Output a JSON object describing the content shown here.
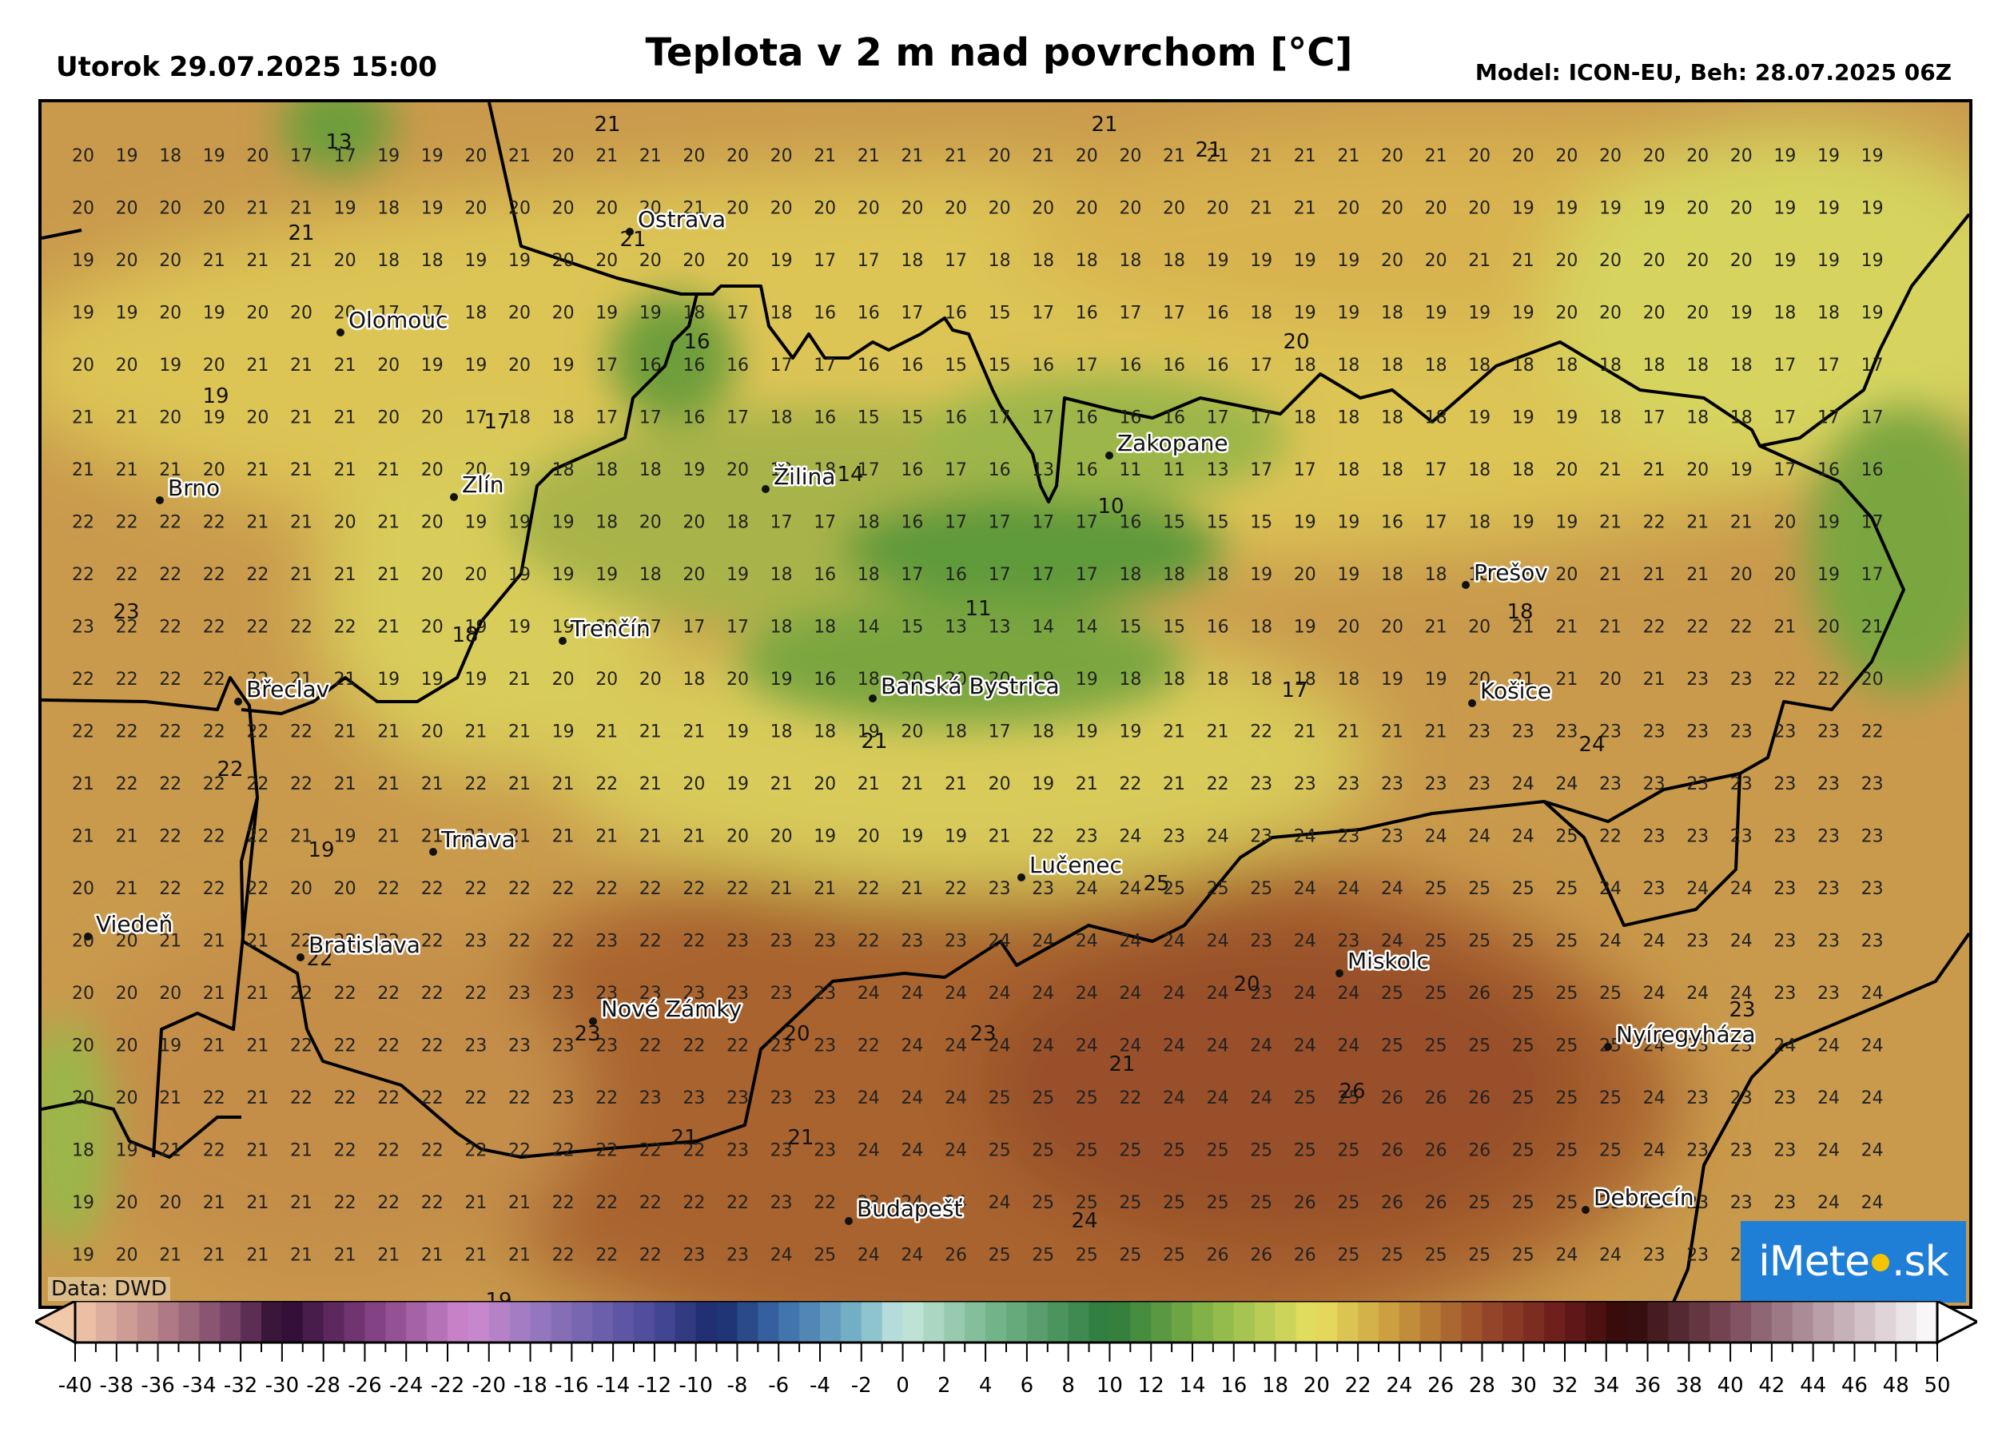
{
  "header": {
    "datetime": "Utorok 29.07.2025 15:00",
    "title": "Teplota v 2 m nad povrchom [°C]",
    "model_info": "Model: ICON-EU, Beh: 28.07.2025 06Z"
  },
  "footer": {
    "data_source": "Data: DWD",
    "logo_text_left": "iMete",
    "logo_text_right": ".sk"
  },
  "cities": [
    {
      "name": "Ostrava"
    },
    {
      "name": "Olomouc"
    },
    {
      "name": "Brno"
    },
    {
      "name": "Zlín"
    },
    {
      "name": "Žilina"
    },
    {
      "name": "Zakopane"
    },
    {
      "name": "Trenčín"
    },
    {
      "name": "Břeclav"
    },
    {
      "name": "Banská Bystrica"
    },
    {
      "name": "Prešov"
    },
    {
      "name": "Košice"
    },
    {
      "name": "Trnava"
    },
    {
      "name": "Viedeň"
    },
    {
      "name": "Bratislava"
    },
    {
      "name": "Lučenec"
    },
    {
      "name": "Miskolc"
    },
    {
      "name": "Nové Zámky"
    },
    {
      "name": "Nyíregyháza"
    },
    {
      "name": "Budapešť"
    },
    {
      "name": "Debrecín"
    }
  ],
  "extremes": [
    {
      "value": "13"
    },
    {
      "value": "21"
    },
    {
      "value": "21"
    },
    {
      "value": "21"
    },
    {
      "value": "21"
    },
    {
      "value": "21"
    },
    {
      "value": "16"
    },
    {
      "value": "20"
    },
    {
      "value": "19"
    },
    {
      "value": "17"
    },
    {
      "value": "14"
    },
    {
      "value": "10"
    },
    {
      "value": "23"
    },
    {
      "value": "18"
    },
    {
      "value": "11"
    },
    {
      "value": "18"
    },
    {
      "value": "17"
    },
    {
      "value": "21"
    },
    {
      "value": "24"
    },
    {
      "value": "22"
    },
    {
      "value": "19"
    },
    {
      "value": "25"
    },
    {
      "value": "22"
    },
    {
      "value": "20"
    },
    {
      "value": "23"
    },
    {
      "value": "23"
    },
    {
      "value": "20"
    },
    {
      "value": "23"
    },
    {
      "value": "21"
    },
    {
      "value": "26"
    },
    {
      "value": "21"
    },
    {
      "value": "21"
    },
    {
      "value": "24"
    },
    {
      "value": "19"
    }
  ],
  "grid_values": [
    [
      20,
      19,
      18,
      19,
      20,
      17,
      17,
      19,
      19,
      20,
      21,
      20,
      21,
      21,
      20,
      20,
      20,
      21,
      21,
      21,
      21,
      20,
      21,
      20,
      20,
      21,
      21,
      21,
      21,
      21,
      20,
      21,
      20,
      20,
      20,
      20,
      20,
      20,
      20,
      19,
      19,
      19
    ],
    [
      20,
      20,
      20,
      20,
      21,
      21,
      19,
      18,
      19,
      20,
      20,
      20,
      20,
      20,
      21,
      20,
      20,
      20,
      20,
      20,
      20,
      20,
      20,
      20,
      20,
      20,
      20,
      21,
      21,
      20,
      20,
      20,
      20,
      19,
      19,
      19,
      19,
      20,
      20,
      19,
      19,
      19
    ],
    [
      19,
      20,
      20,
      21,
      21,
      21,
      20,
      18,
      18,
      19,
      19,
      20,
      20,
      20,
      20,
      20,
      19,
      17,
      17,
      18,
      17,
      18,
      18,
      18,
      18,
      18,
      19,
      19,
      19,
      19,
      20,
      20,
      21,
      21,
      20,
      20,
      20,
      20,
      20,
      19,
      19,
      19
    ],
    [
      19,
      19,
      20,
      19,
      20,
      20,
      20,
      17,
      17,
      18,
      20,
      20,
      19,
      19,
      18,
      17,
      18,
      16,
      16,
      17,
      16,
      15,
      17,
      16,
      17,
      17,
      16,
      18,
      19,
      19,
      18,
      19,
      19,
      19,
      20,
      20,
      20,
      20,
      19,
      18,
      18,
      19
    ],
    [
      20,
      20,
      19,
      20,
      21,
      21,
      21,
      20,
      19,
      19,
      20,
      19,
      17,
      16,
      16,
      16,
      17,
      17,
      16,
      16,
      15,
      15,
      16,
      17,
      16,
      16,
      16,
      17,
      18,
      18,
      18,
      18,
      18,
      18,
      18,
      18,
      18,
      18,
      18,
      17,
      17,
      17
    ],
    [
      21,
      21,
      20,
      19,
      20,
      21,
      21,
      20,
      20,
      17,
      18,
      18,
      17,
      17,
      16,
      17,
      18,
      16,
      15,
      15,
      16,
      17,
      17,
      16,
      16,
      16,
      17,
      17,
      18,
      18,
      18,
      18,
      19,
      19,
      19,
      18,
      17,
      18,
      18,
      17,
      17,
      17
    ],
    [
      21,
      21,
      21,
      20,
      21,
      21,
      21,
      21,
      20,
      20,
      19,
      18,
      18,
      18,
      19,
      20,
      19,
      18,
      17,
      16,
      17,
      16,
      13,
      16,
      11,
      11,
      13,
      17,
      17,
      18,
      18,
      17,
      18,
      18,
      20,
      21,
      21,
      20,
      19,
      17,
      16,
      16
    ],
    [
      22,
      22,
      22,
      22,
      21,
      21,
      20,
      21,
      20,
      19,
      19,
      19,
      18,
      20,
      20,
      18,
      17,
      17,
      18,
      16,
      17,
      17,
      17,
      17,
      16,
      15,
      15,
      15,
      19,
      19,
      16,
      17,
      18,
      19,
      19,
      21,
      22,
      21,
      21,
      20,
      19,
      17
    ],
    [
      22,
      22,
      22,
      22,
      22,
      21,
      21,
      21,
      20,
      20,
      19,
      19,
      19,
      18,
      20,
      19,
      18,
      16,
      18,
      17,
      16,
      17,
      17,
      17,
      18,
      18,
      18,
      19,
      20,
      19,
      18,
      18,
      18,
      18,
      20,
      21,
      21,
      21,
      20,
      20,
      19,
      17
    ],
    [
      23,
      22,
      22,
      22,
      22,
      22,
      22,
      21,
      20,
      19,
      19,
      19,
      20,
      17,
      17,
      17,
      18,
      18,
      14,
      15,
      13,
      13,
      14,
      14,
      15,
      15,
      16,
      18,
      19,
      20,
      20,
      21,
      20,
      21,
      21,
      21,
      22,
      22,
      22,
      21,
      20,
      21
    ],
    [
      22,
      22,
      22,
      22,
      22,
      21,
      21,
      19,
      19,
      19,
      21,
      20,
      20,
      20,
      18,
      20,
      19,
      16,
      18,
      20,
      20,
      20,
      19,
      19,
      18,
      18,
      18,
      18,
      18,
      18,
      19,
      19,
      20,
      21,
      21,
      20,
      21,
      23,
      23,
      22,
      22,
      20
    ],
    [
      22,
      22,
      22,
      22,
      22,
      22,
      21,
      21,
      20,
      21,
      21,
      19,
      21,
      21,
      21,
      19,
      18,
      18,
      19,
      20,
      18,
      17,
      18,
      19,
      19,
      21,
      21,
      22,
      21,
      21,
      21,
      21,
      23,
      23,
      23,
      23,
      23,
      23,
      23,
      23,
      23,
      22
    ],
    [
      21,
      22,
      22,
      22,
      22,
      22,
      21,
      21,
      21,
      22,
      21,
      21,
      22,
      21,
      20,
      19,
      21,
      20,
      21,
      21,
      21,
      20,
      19,
      21,
      22,
      21,
      22,
      23,
      23,
      23,
      23,
      23,
      23,
      24,
      24,
      23,
      23,
      23,
      23,
      23,
      23,
      23
    ],
    [
      21,
      21,
      22,
      22,
      22,
      21,
      19,
      21,
      21,
      21,
      21,
      21,
      21,
      21,
      21,
      20,
      20,
      19,
      20,
      19,
      19,
      21,
      22,
      23,
      24,
      23,
      24,
      23,
      24,
      23,
      23,
      24,
      24,
      24,
      25,
      22,
      23,
      23,
      23,
      23,
      23,
      23
    ],
    [
      20,
      21,
      22,
      22,
      22,
      20,
      20,
      22,
      22,
      22,
      22,
      22,
      22,
      22,
      22,
      22,
      21,
      21,
      22,
      21,
      22,
      23,
      23,
      24,
      24,
      25,
      25,
      25,
      24,
      24,
      24,
      25,
      25,
      25,
      25,
      24,
      23,
      24,
      24,
      23,
      23,
      23
    ],
    [
      20,
      20,
      21,
      21,
      21,
      22,
      22,
      22,
      22,
      23,
      22,
      22,
      23,
      22,
      22,
      23,
      23,
      23,
      22,
      23,
      23,
      24,
      24,
      24,
      24,
      24,
      24,
      23,
      24,
      23,
      24,
      25,
      25,
      25,
      25,
      24,
      24,
      23,
      24,
      23,
      23,
      23
    ],
    [
      20,
      20,
      20,
      21,
      21,
      22,
      22,
      22,
      22,
      22,
      23,
      23,
      23,
      23,
      23,
      23,
      23,
      23,
      24,
      24,
      24,
      24,
      24,
      24,
      24,
      24,
      24,
      23,
      24,
      24,
      25,
      25,
      26,
      25,
      25,
      25,
      24,
      24,
      24,
      23,
      23,
      24
    ],
    [
      20,
      20,
      19,
      21,
      21,
      22,
      22,
      22,
      22,
      23,
      23,
      23,
      23,
      22,
      22,
      22,
      23,
      23,
      22,
      24,
      24,
      24,
      24,
      24,
      24,
      24,
      24,
      24,
      24,
      24,
      25,
      25,
      25,
      25,
      25,
      25,
      24,
      23,
      23,
      24,
      24,
      24
    ],
    [
      20,
      20,
      21,
      22,
      21,
      22,
      22,
      22,
      22,
      22,
      22,
      23,
      22,
      23,
      23,
      23,
      23,
      23,
      24,
      24,
      24,
      25,
      25,
      25,
      22,
      24,
      24,
      24,
      25,
      25,
      26,
      26,
      26,
      25,
      25,
      25,
      24,
      23,
      23,
      23,
      24,
      24
    ],
    [
      18,
      19,
      21,
      22,
      21,
      21,
      22,
      22,
      22,
      22,
      22,
      22,
      22,
      22,
      22,
      23,
      23,
      23,
      24,
      24,
      24,
      25,
      25,
      25,
      25,
      25,
      25,
      25,
      25,
      25,
      26,
      26,
      26,
      25,
      25,
      25,
      24,
      23,
      23,
      23,
      24,
      24
    ],
    [
      19,
      20,
      20,
      21,
      21,
      21,
      22,
      22,
      22,
      21,
      21,
      22,
      22,
      22,
      22,
      22,
      23,
      22,
      23,
      24,
      24,
      24,
      25,
      25,
      25,
      25,
      25,
      25,
      26,
      25,
      26,
      26,
      25,
      25,
      25,
      25,
      23,
      23,
      23,
      23,
      24,
      24
    ],
    [
      19,
      20,
      21,
      21,
      21,
      21,
      21,
      21,
      21,
      21,
      21,
      22,
      22,
      22,
      23,
      23,
      24,
      25,
      24,
      24,
      26,
      25,
      25,
      25,
      25,
      25,
      26,
      26,
      26,
      25,
      25,
      25,
      25,
      25,
      24,
      24,
      23,
      23,
      23,
      23,
      23,
      23
    ]
  ],
  "colorbar": {
    "min": -40,
    "max": 50,
    "step": 1,
    "tick_labels": [
      "-40",
      "-38",
      "-36",
      "-34",
      "-32",
      "-30",
      "-28",
      "-26",
      "-24",
      "-22",
      "-20",
      "-18",
      "-16",
      "-14",
      "-12",
      "-10",
      "-8",
      "-6",
      "-4",
      "-2",
      "0",
      "2",
      "4",
      "6",
      "8",
      "10",
      "12",
      "14",
      "16",
      "18",
      "20",
      "22",
      "24",
      "26",
      "28",
      "30",
      "32",
      "34",
      "36",
      "38",
      "40",
      "42",
      "44",
      "46",
      "48",
      "50"
    ],
    "stops": [
      {
        "v": -40,
        "c": "#f1c8a8"
      },
      {
        "v": -36,
        "c": "#b8838a"
      },
      {
        "v": -32,
        "c": "#6e3a62"
      },
      {
        "v": -30,
        "c": "#2a0a2e"
      },
      {
        "v": -26,
        "c": "#7a3a7a"
      },
      {
        "v": -21,
        "c": "#d08ad0"
      },
      {
        "v": -18,
        "c": "#9a7ac0"
      },
      {
        "v": -12,
        "c": "#4a4a9a"
      },
      {
        "v": -9,
        "c": "#1a2a6a"
      },
      {
        "v": -6,
        "c": "#3a6aaa"
      },
      {
        "v": -2,
        "c": "#7ab8c8"
      },
      {
        "v": 0,
        "c": "#c8e8e0"
      },
      {
        "v": 4,
        "c": "#7ab890"
      },
      {
        "v": 10,
        "c": "#2a7a3a"
      },
      {
        "v": 15,
        "c": "#8ab84a"
      },
      {
        "v": 20,
        "c": "#e8e060"
      },
      {
        "v": 24,
        "c": "#c8963c"
      },
      {
        "v": 28,
        "c": "#9a4a2a"
      },
      {
        "v": 32,
        "c": "#6a1a1a"
      },
      {
        "v": 35,
        "c": "#300808"
      },
      {
        "v": 40,
        "c": "#7a4a5a"
      },
      {
        "v": 45,
        "c": "#c0a8b0"
      },
      {
        "v": 50,
        "c": "#ffffff"
      }
    ]
  }
}
